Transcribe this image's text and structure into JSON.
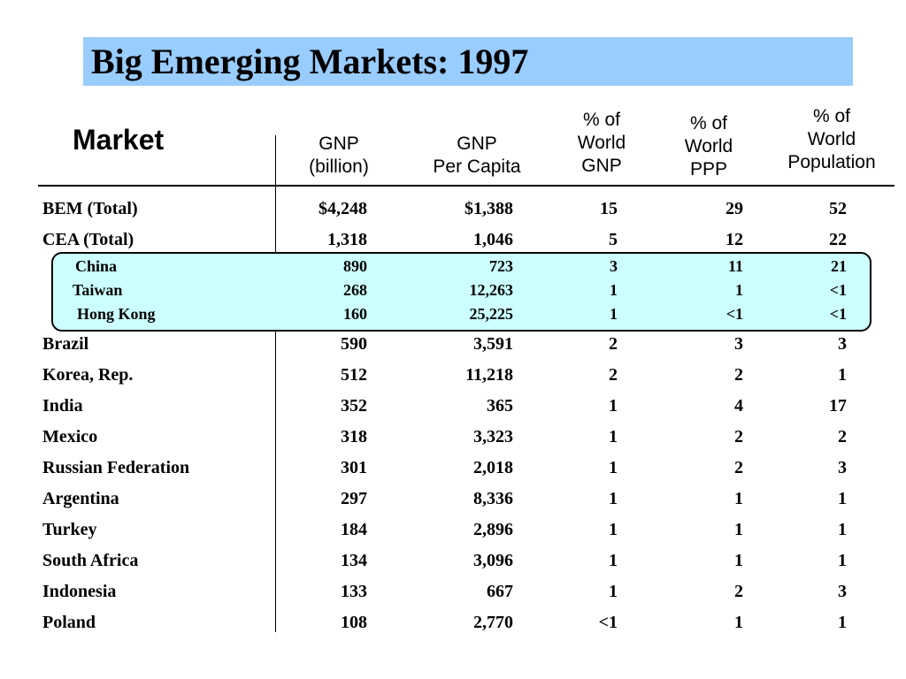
{
  "title": "Big Emerging Markets: 1997",
  "header": {
    "market": "Market",
    "columns": [
      "GNP\n(billion)",
      "GNP\nPer Capita",
      "% of\nWorld\nGNP",
      "% of\nWorld\nPPP",
      "% of\nWorld\nPopulation"
    ]
  },
  "rows": [
    {
      "market": "BEM (Total)",
      "values": [
        "$4,248",
        "$1,388",
        "15",
        "29",
        "52"
      ]
    },
    {
      "market": "CEA (Total)",
      "values": [
        "1,318",
        "1,046",
        "5",
        "12",
        "22"
      ]
    },
    {
      "market": "China",
      "values": [
        "890",
        "723",
        "3",
        "11",
        "21"
      ]
    },
    {
      "market": "Taiwan",
      "values": [
        "268",
        "12,263",
        "1",
        "1",
        "<1"
      ]
    },
    {
      "market": "Hong Kong",
      "values": [
        "160",
        "25,225",
        "1",
        "<1",
        "<1"
      ]
    },
    {
      "market": "Brazil",
      "values": [
        "590",
        "3,591",
        "2",
        "3",
        "3"
      ]
    },
    {
      "market": "Korea, Rep.",
      "values": [
        "512",
        "11,218",
        "2",
        "2",
        "1"
      ]
    },
    {
      "market": "India",
      "values": [
        "352",
        "365",
        "1",
        "4",
        "17"
      ]
    },
    {
      "market": "Mexico",
      "values": [
        "318",
        "3,323",
        "1",
        "2",
        "2"
      ]
    },
    {
      "market": "Russian Federation",
      "values": [
        "301",
        "2,018",
        "1",
        "2",
        "3"
      ]
    },
    {
      "market": "Argentina",
      "values": [
        "297",
        "8,336",
        "1",
        "1",
        "1"
      ]
    },
    {
      "market": "Turkey",
      "values": [
        "184",
        "2,896",
        "1",
        "1",
        "1"
      ]
    },
    {
      "market": "South Africa",
      "values": [
        "134",
        "3,096",
        "1",
        "1",
        "1"
      ]
    },
    {
      "market": "Indonesia",
      "values": [
        "133",
        "667",
        "1",
        "2",
        "3"
      ]
    },
    {
      "market": "Poland",
      "values": [
        "108",
        "2,770",
        "<1",
        "1",
        "1"
      ]
    }
  ]
}
